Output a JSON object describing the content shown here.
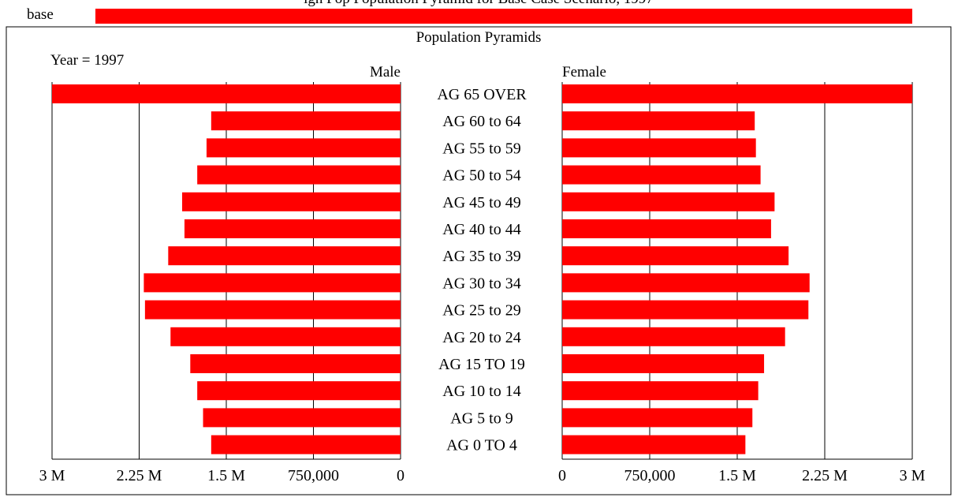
{
  "header": {
    "partial_title": "igh Pop Population Pyramid for Base Case Scenario, 1997",
    "legend_label": "base"
  },
  "chart_data": {
    "type": "bar",
    "title": "Population Pyramids",
    "year_label": "Year = 1997",
    "left_label": "Male",
    "right_label": "Female",
    "colors": {
      "bar": "#ff0000",
      "axis": "#000000",
      "background": "#ffffff"
    },
    "grid": true,
    "xlim": [
      0,
      3000000
    ],
    "left_ticks": [
      "3 M",
      "2.25 M",
      "1.5 M",
      "750,000",
      "0"
    ],
    "right_ticks": [
      "0",
      "750,000",
      "1.5 M",
      "2.25 M",
      "3 M"
    ],
    "left_tick_values": [
      3000000,
      2250000,
      1500000,
      750000,
      0
    ],
    "right_tick_values": [
      0,
      750000,
      1500000,
      2250000,
      3000000
    ],
    "categories": [
      "AG 65 OVER",
      "AG 60 to 64",
      "AG 55 to 59",
      "AG 50 to 54",
      "AG 45 to 49",
      "AG 40 to 44",
      "AG 35 to 39",
      "AG 30 to 34",
      "AG 25 to 29",
      "AG 20 to 24",
      "AG 15 TO 19",
      "AG 10 to 14",
      "AG 5 to 9",
      "AG 0 TO 4"
    ],
    "series": [
      {
        "name": "Male",
        "values": [
          3000000,
          1630000,
          1670000,
          1750000,
          1880000,
          1860000,
          2000000,
          2210000,
          2200000,
          1980000,
          1810000,
          1750000,
          1700000,
          1630000
        ]
      },
      {
        "name": "Female",
        "values": [
          3000000,
          1650000,
          1660000,
          1700000,
          1820000,
          1790000,
          1940000,
          2120000,
          2110000,
          1910000,
          1730000,
          1680000,
          1630000,
          1570000
        ]
      }
    ],
    "legend_value": 2820000
  }
}
